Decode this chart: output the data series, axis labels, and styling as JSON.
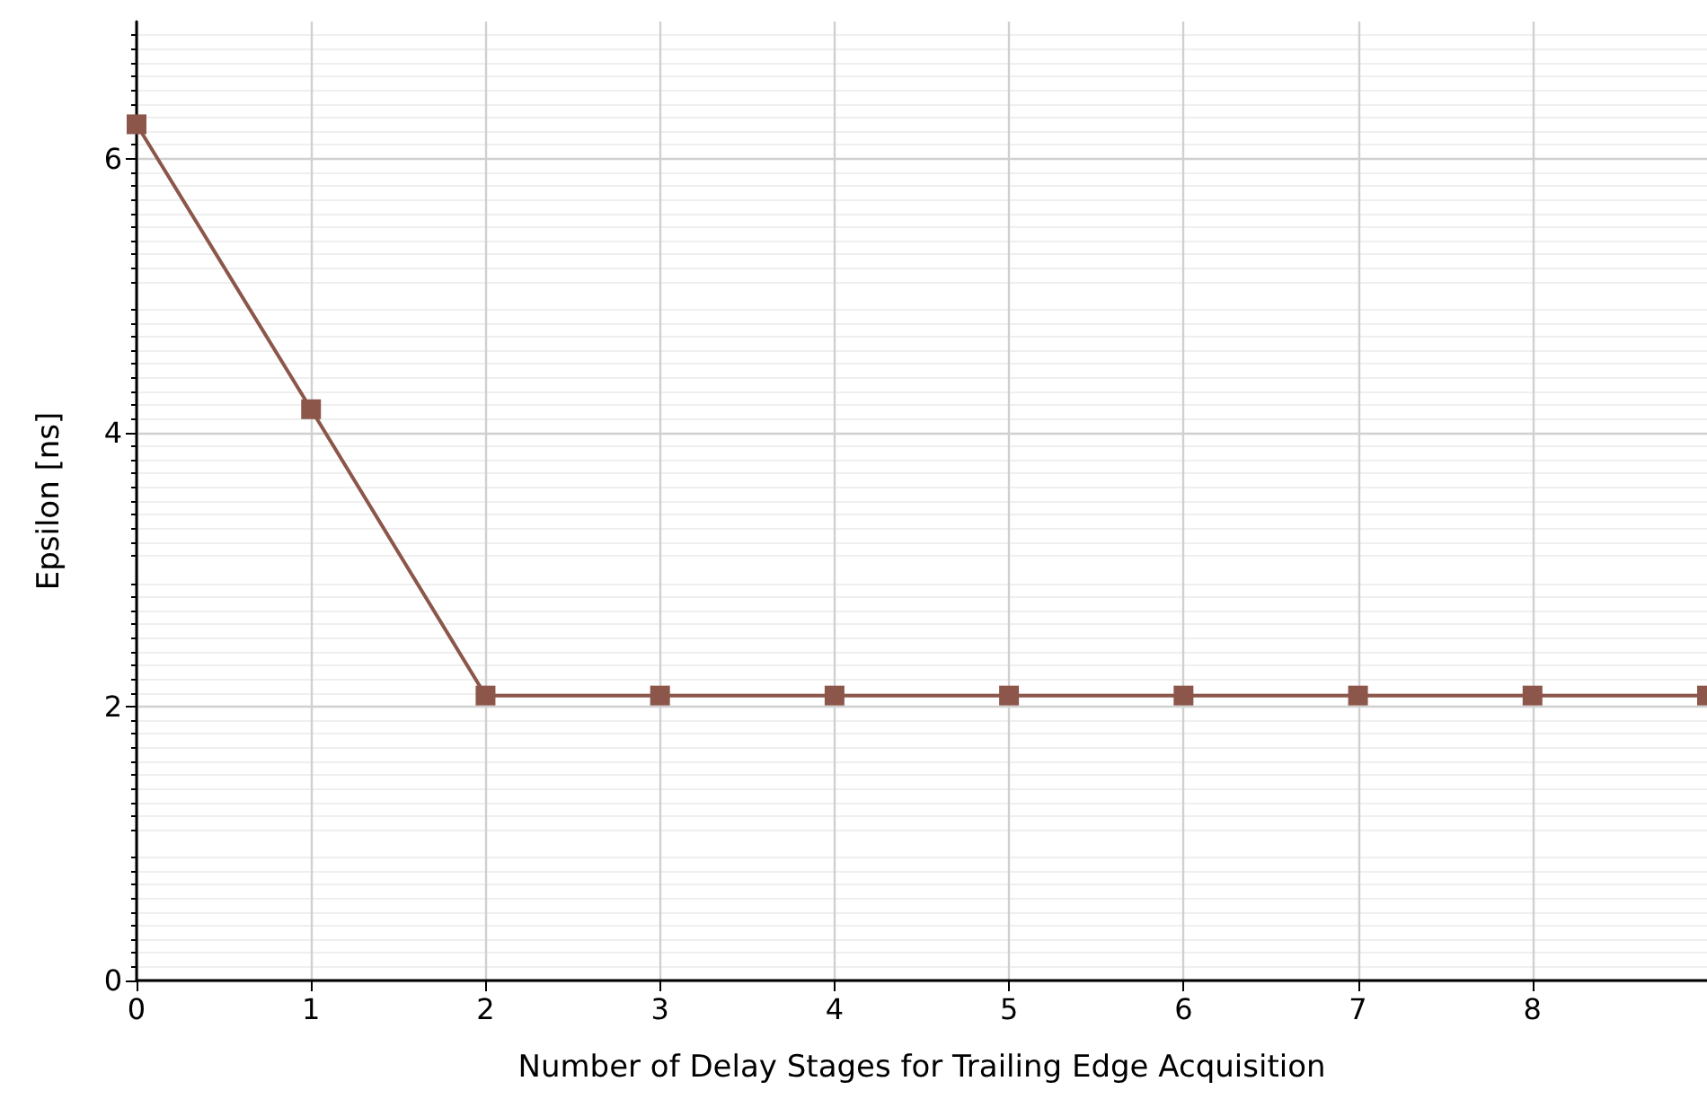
{
  "chart_data": {
    "type": "line",
    "xlabel": "Number of Delay Stages for Trailing Edge Acquisition",
    "ylabel": "Epsilon [ns]",
    "x": [
      0,
      1,
      2,
      3,
      4,
      5,
      6,
      7,
      8,
      9
    ],
    "series": [
      {
        "color": "#8c564b",
        "values": [
          6.25,
          4.17,
          2.08,
          2.08,
          2.08,
          2.08,
          2.08,
          2.08,
          2.08,
          2.08
        ]
      }
    ],
    "xlim": [
      0,
      9
    ],
    "xticks": [
      0,
      1,
      2,
      3,
      4,
      5,
      6,
      7,
      8
    ],
    "ylim": [
      0,
      7
    ],
    "yticks": [
      0,
      2,
      4,
      6
    ],
    "grid": true,
    "marker": "square",
    "line_style": "solid"
  }
}
